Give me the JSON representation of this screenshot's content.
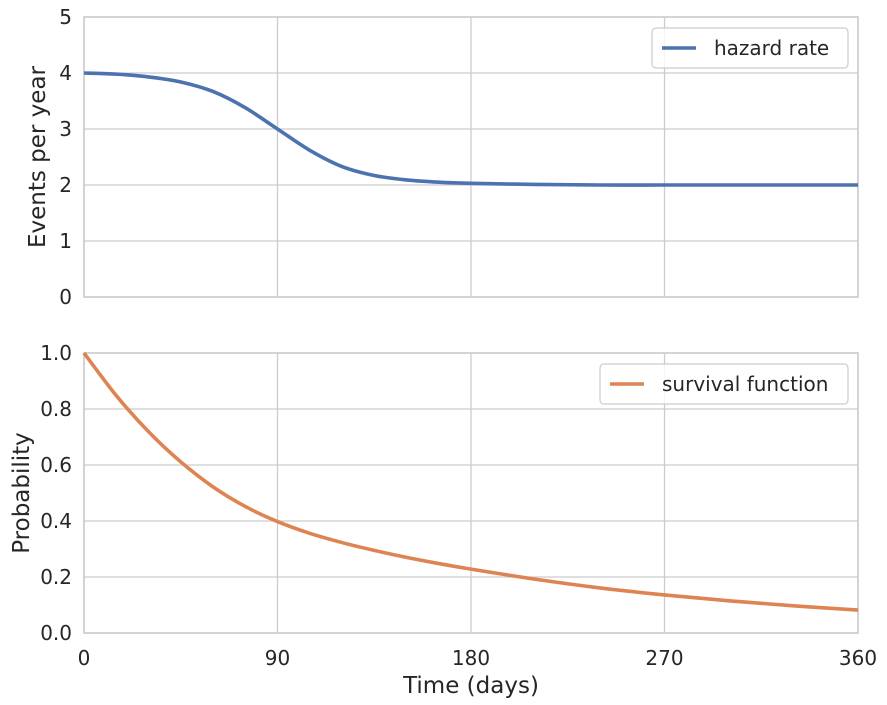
{
  "chart_data": [
    {
      "type": "line",
      "ylabel": "Events per year",
      "xlabel": "",
      "xlim": [
        0,
        360
      ],
      "ylim": [
        0,
        5
      ],
      "xticks": [
        0,
        90,
        180,
        270,
        360
      ],
      "yticks": [
        0,
        1,
        2,
        3,
        4,
        5
      ],
      "grid": true,
      "legend_position": "top-right",
      "series": [
        {
          "name": "hazard rate",
          "color": "#4c72b0",
          "x": [
            0,
            15,
            30,
            45,
            60,
            75,
            90,
            105,
            120,
            135,
            150,
            165,
            180,
            210,
            240,
            270,
            300,
            330,
            360
          ],
          "y": [
            4.0,
            3.98,
            3.93,
            3.84,
            3.67,
            3.38,
            3.0,
            2.62,
            2.33,
            2.17,
            2.09,
            2.05,
            2.03,
            2.01,
            2.0,
            2.0,
            2.0,
            2.0,
            2.0
          ]
        }
      ]
    },
    {
      "type": "line",
      "ylabel": "Probability",
      "xlabel": "Time (days)",
      "xlim": [
        0,
        360
      ],
      "ylim": [
        0,
        1
      ],
      "xticks": [
        0,
        90,
        180,
        270,
        360
      ],
      "yticks": [
        0.0,
        0.2,
        0.4,
        0.6,
        0.8,
        1.0
      ],
      "grid": true,
      "legend_position": "top-right",
      "series": [
        {
          "name": "survival function",
          "color": "#dd8452",
          "x": [
            0,
            15,
            30,
            45,
            60,
            75,
            90,
            105,
            120,
            135,
            150,
            165,
            180,
            210,
            240,
            270,
            300,
            330,
            360
          ],
          "y": [
            1.0,
            0.848,
            0.719,
            0.611,
            0.522,
            0.452,
            0.398,
            0.356,
            0.323,
            0.295,
            0.27,
            0.248,
            0.228,
            0.192,
            0.161,
            0.136,
            0.115,
            0.097,
            0.082
          ]
        }
      ]
    }
  ]
}
